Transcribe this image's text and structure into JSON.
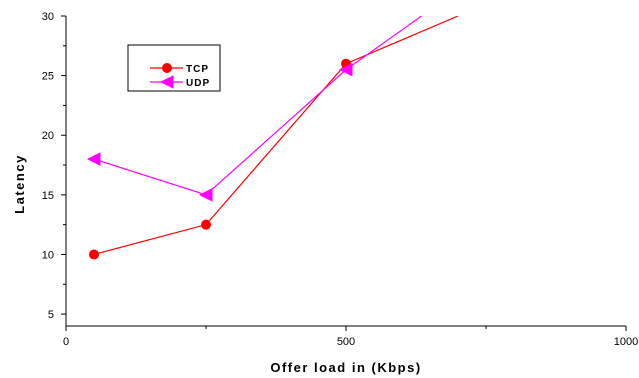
{
  "chart_data": {
    "type": "line",
    "title": "",
    "xlabel": "Offer load in (Kbps)",
    "ylabel": "Latency",
    "xlim": [
      0,
      1000
    ],
    "ylim": [
      4,
      30
    ],
    "x_ticks": [
      0,
      500,
      1000
    ],
    "x_tick_labels": [
      "0",
      "500",
      "1000"
    ],
    "y_ticks": [
      5,
      10,
      15,
      20,
      25,
      30
    ],
    "y_tick_labels": [
      "5",
      "10",
      "15",
      "20",
      "25",
      "30"
    ],
    "grid": false,
    "legend_position": "top-left",
    "series": [
      {
        "name": "TCP",
        "color": "#ff0000",
        "marker": "circle",
        "x": [
          50,
          250,
          500,
          700
        ],
        "y": [
          10,
          12.5,
          26,
          30
        ]
      },
      {
        "name": "UDP",
        "color": "#ff00ff",
        "marker": "triangle-left",
        "x": [
          50,
          250,
          500,
          635
        ],
        "y": [
          18,
          15,
          25.5,
          30
        ]
      }
    ]
  }
}
